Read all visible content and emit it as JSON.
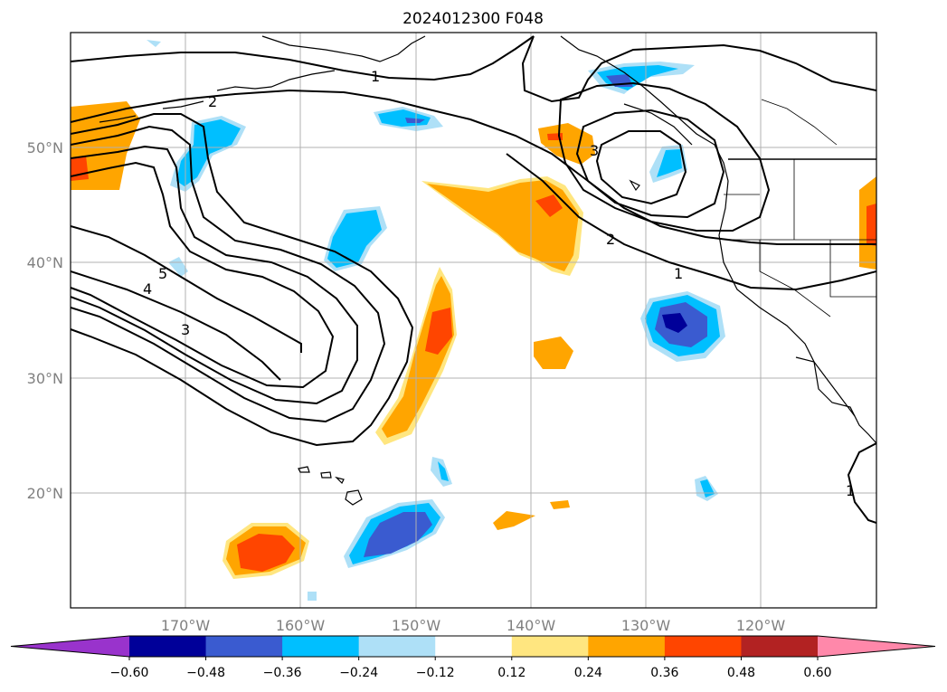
{
  "title": "2024012300 F048",
  "axes": {
    "lon_ticks": [
      "170°W",
      "160°W",
      "150°W",
      "140°W",
      "130°W",
      "120°W"
    ],
    "lat_ticks": [
      "50°N",
      "40°N",
      "30°N",
      "20°N"
    ]
  },
  "contour_labels": [
    "1",
    "2",
    "3",
    "4",
    "5",
    "3",
    "2",
    "1",
    "1"
  ],
  "colorbar": {
    "levels": [
      "−0.60",
      "−0.48",
      "−0.36",
      "−0.24",
      "−0.12",
      "0.12",
      "0.24",
      "0.36",
      "0.48",
      "0.60"
    ],
    "colors": [
      "#9933cc",
      "#000099",
      "#3a5bd0",
      "#00bfff",
      "#aee0f7",
      "#ffffff",
      "#ffe680",
      "#ffa500",
      "#ff4500",
      "#b22222",
      "#ff88aa"
    ]
  },
  "shading": {
    "neg": [
      "#aee0f7",
      "#00bfff",
      "#3a5bd0",
      "#000099"
    ],
    "pos": [
      "#ffe680",
      "#ffa500",
      "#ff4500"
    ]
  },
  "map": {
    "lon_range": [
      "-180",
      "-110"
    ],
    "lat_range": [
      "10",
      "60"
    ],
    "gridlines": "on"
  }
}
